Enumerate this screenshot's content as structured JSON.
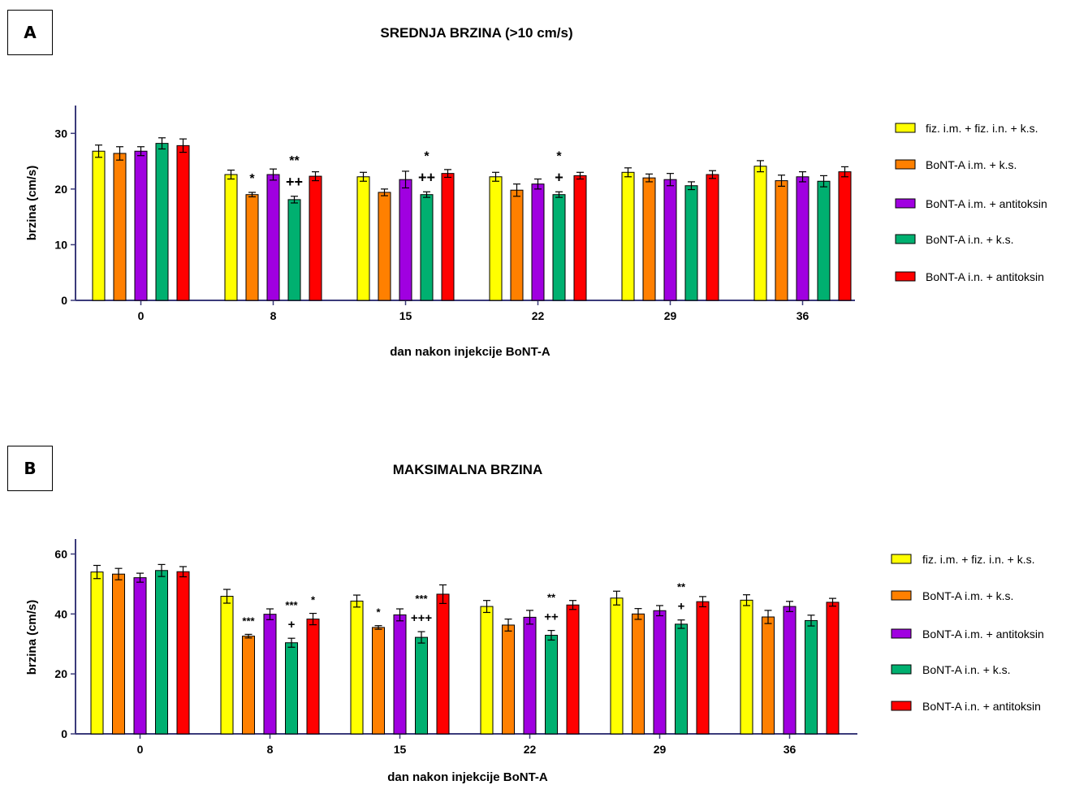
{
  "panels": [
    {
      "label": "A",
      "title": "SREDNJA BRZINA (>10 cm/s)"
    },
    {
      "label": "B",
      "title": "MAKSIMALNA BRZINA"
    }
  ],
  "series_colors": [
    "#FFFF00",
    "#FF8000",
    "#A000E0",
    "#00B070",
    "#FF0000"
  ],
  "chart_data": [
    {
      "type": "bar",
      "title": "SREDNJA BRZINA (>10 cm/s)",
      "xlabel": "dan nakon injekcije BoNT-A",
      "ylabel": "brzina (cm/s)",
      "ylim": [
        0,
        35
      ],
      "yticks": [
        0,
        10,
        20,
        30
      ],
      "categories": [
        "0",
        "8",
        "15",
        "22",
        "29",
        "36"
      ],
      "legend_position": "right",
      "grid": false,
      "series": [
        {
          "name": "fiz. i.m. + fiz. i.n. + k.s.",
          "values": [
            26.8,
            22.6,
            22.2,
            22.2,
            23.0,
            24.1
          ],
          "errors": [
            1.1,
            0.8,
            0.8,
            0.8,
            0.8,
            1.0
          ]
        },
        {
          "name": "BoNT-A i.m. + k.s.",
          "values": [
            26.4,
            19.0,
            19.4,
            19.8,
            22.0,
            21.5
          ],
          "errors": [
            1.2,
            0.4,
            0.6,
            1.1,
            0.7,
            1.0
          ]
        },
        {
          "name": "BoNT-A i.m. + antitoksin",
          "values": [
            26.8,
            22.6,
            21.7,
            20.9,
            21.7,
            22.2
          ],
          "errors": [
            0.8,
            1.0,
            1.5,
            0.9,
            1.1,
            0.9
          ]
        },
        {
          "name": "BoNT-A i.n. + k.s.",
          "values": [
            28.2,
            18.1,
            19.0,
            19.0,
            20.6,
            21.4
          ],
          "errors": [
            1.0,
            0.6,
            0.5,
            0.5,
            0.7,
            1.0
          ]
        },
        {
          "name": "BoNT-A i.n. + antitoksin",
          "values": [
            27.8,
            22.3,
            22.8,
            22.4,
            22.6,
            23.1
          ],
          "errors": [
            1.2,
            0.8,
            0.7,
            0.6,
            0.7,
            0.9
          ]
        }
      ],
      "annotations": [
        {
          "category": "8",
          "series": 1,
          "lines": [
            "*"
          ]
        },
        {
          "category": "8",
          "series": 3,
          "lines": [
            "**",
            "++"
          ]
        },
        {
          "category": "15",
          "series": 3,
          "lines": [
            "*",
            "++"
          ]
        },
        {
          "category": "22",
          "series": 3,
          "lines": [
            "*",
            "+"
          ]
        }
      ]
    },
    {
      "type": "bar",
      "title": "MAKSIMALNA BRZINA",
      "xlabel": "dan nakon injekcije BoNT-A",
      "ylabel": "brzina (cm/s)",
      "ylim": [
        0,
        65
      ],
      "yticks": [
        0,
        20,
        40,
        60
      ],
      "categories": [
        "0",
        "8",
        "15",
        "22",
        "29",
        "36"
      ],
      "legend_position": "right",
      "grid": false,
      "series": [
        {
          "name": "fiz. i.m. + fiz. i.n. + k.s.",
          "values": [
            54.0,
            45.9,
            44.3,
            42.5,
            45.3,
            44.6
          ],
          "errors": [
            2.2,
            2.3,
            2.0,
            2.0,
            2.3,
            1.8
          ]
        },
        {
          "name": "BoNT-A i.m. + k.s.",
          "values": [
            53.3,
            32.6,
            35.5,
            36.3,
            40.0,
            39.0
          ],
          "errors": [
            1.9,
            0.6,
            0.6,
            2.0,
            1.8,
            2.2
          ]
        },
        {
          "name": "BoNT-A i.m. + antitoksin",
          "values": [
            52.1,
            39.9,
            39.7,
            38.9,
            41.1,
            42.5
          ],
          "errors": [
            1.5,
            1.8,
            2.0,
            2.3,
            1.7,
            1.7
          ]
        },
        {
          "name": "BoNT-A i.n. + k.s.",
          "values": [
            54.5,
            30.4,
            32.2,
            32.9,
            36.6,
            37.8
          ],
          "errors": [
            2.0,
            1.5,
            1.9,
            1.6,
            1.4,
            1.8
          ]
        },
        {
          "name": "BoNT-A i.n. + antitoksin",
          "values": [
            54.1,
            38.3,
            46.6,
            43.0,
            44.1,
            43.9
          ],
          "errors": [
            1.7,
            1.9,
            3.1,
            1.5,
            1.7,
            1.3
          ]
        }
      ],
      "annotations": [
        {
          "category": "8",
          "series": 1,
          "lines": [
            "***"
          ]
        },
        {
          "category": "8",
          "series": 3,
          "lines": [
            "***",
            "+"
          ]
        },
        {
          "category": "8",
          "series": 4,
          "lines": [
            "*"
          ]
        },
        {
          "category": "15",
          "series": 1,
          "lines": [
            "*"
          ]
        },
        {
          "category": "15",
          "series": 3,
          "lines": [
            "***",
            "+++"
          ]
        },
        {
          "category": "22",
          "series": 3,
          "lines": [
            "**",
            "++"
          ]
        },
        {
          "category": "29",
          "series": 3,
          "lines": [
            "**",
            "+"
          ]
        }
      ]
    }
  ]
}
